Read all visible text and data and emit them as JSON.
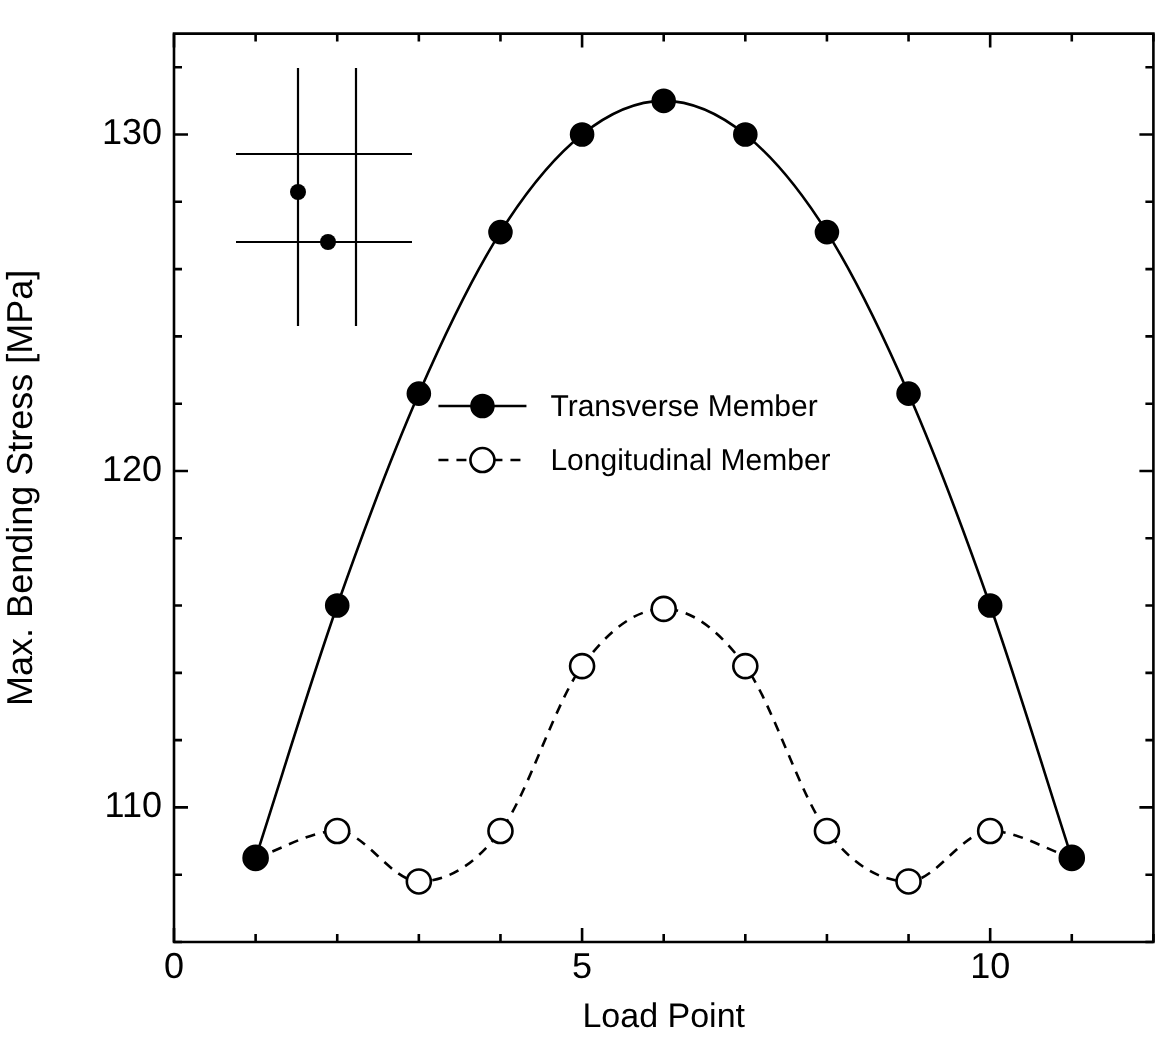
{
  "chart_data": {
    "type": "line",
    "xlabel": "Load Point",
    "ylabel": "Max. Bending Stress [MPa]",
    "x": [
      1,
      2,
      3,
      4,
      5,
      6,
      7,
      8,
      9,
      10,
      11
    ],
    "series": [
      {
        "name": "Transverse Member",
        "color": "#000000",
        "marker": "circle",
        "line_style": "solid",
        "values": [
          108.5,
          116,
          122.3,
          127.1,
          130,
          131,
          130,
          127.1,
          122.3,
          116,
          108.5
        ]
      },
      {
        "name": "Longitudinal Member",
        "color": "#000000",
        "marker": "circle",
        "line_style": "dashed",
        "values": [
          108.5,
          109.3,
          107.8,
          109.3,
          114.2,
          115.9,
          114.2,
          109.3,
          107.8,
          109.3,
          108.5
        ]
      }
    ],
    "xlim": [
      0,
      12
    ],
    "xticks": [
      0,
      {
        "value": 1,
        "label": null
      },
      {
        "value": 2,
        "label": null
      },
      {
        "value": 3,
        "label": null
      },
      {
        "value": 4,
        "label": null
      },
      5,
      {
        "value": 6,
        "label": null
      },
      {
        "value": 7,
        "label": null
      },
      {
        "value": 8,
        "label": null
      },
      {
        "value": 9,
        "label": null
      },
      10,
      {
        "value": 11,
        "label": null
      },
      {
        "value": 12,
        "label": null
      }
    ],
    "ylim": [
      106,
      133
    ],
    "yticks": [
      {
        "value": 106,
        "label": null
      },
      {
        "value": 108,
        "label": null
      },
      110,
      {
        "value": 112,
        "label": null
      },
      {
        "value": 114,
        "label": null
      },
      {
        "value": 116,
        "label": null
      },
      {
        "value": 118,
        "label": null
      },
      120,
      {
        "value": 122,
        "label": null
      },
      {
        "value": 124,
        "label": null
      },
      {
        "value": 126,
        "label": null
      },
      {
        "value": 128,
        "label": null
      },
      130,
      {
        "value": 132,
        "label": null
      }
    ],
    "grid": false,
    "legend": "left"
  }
}
